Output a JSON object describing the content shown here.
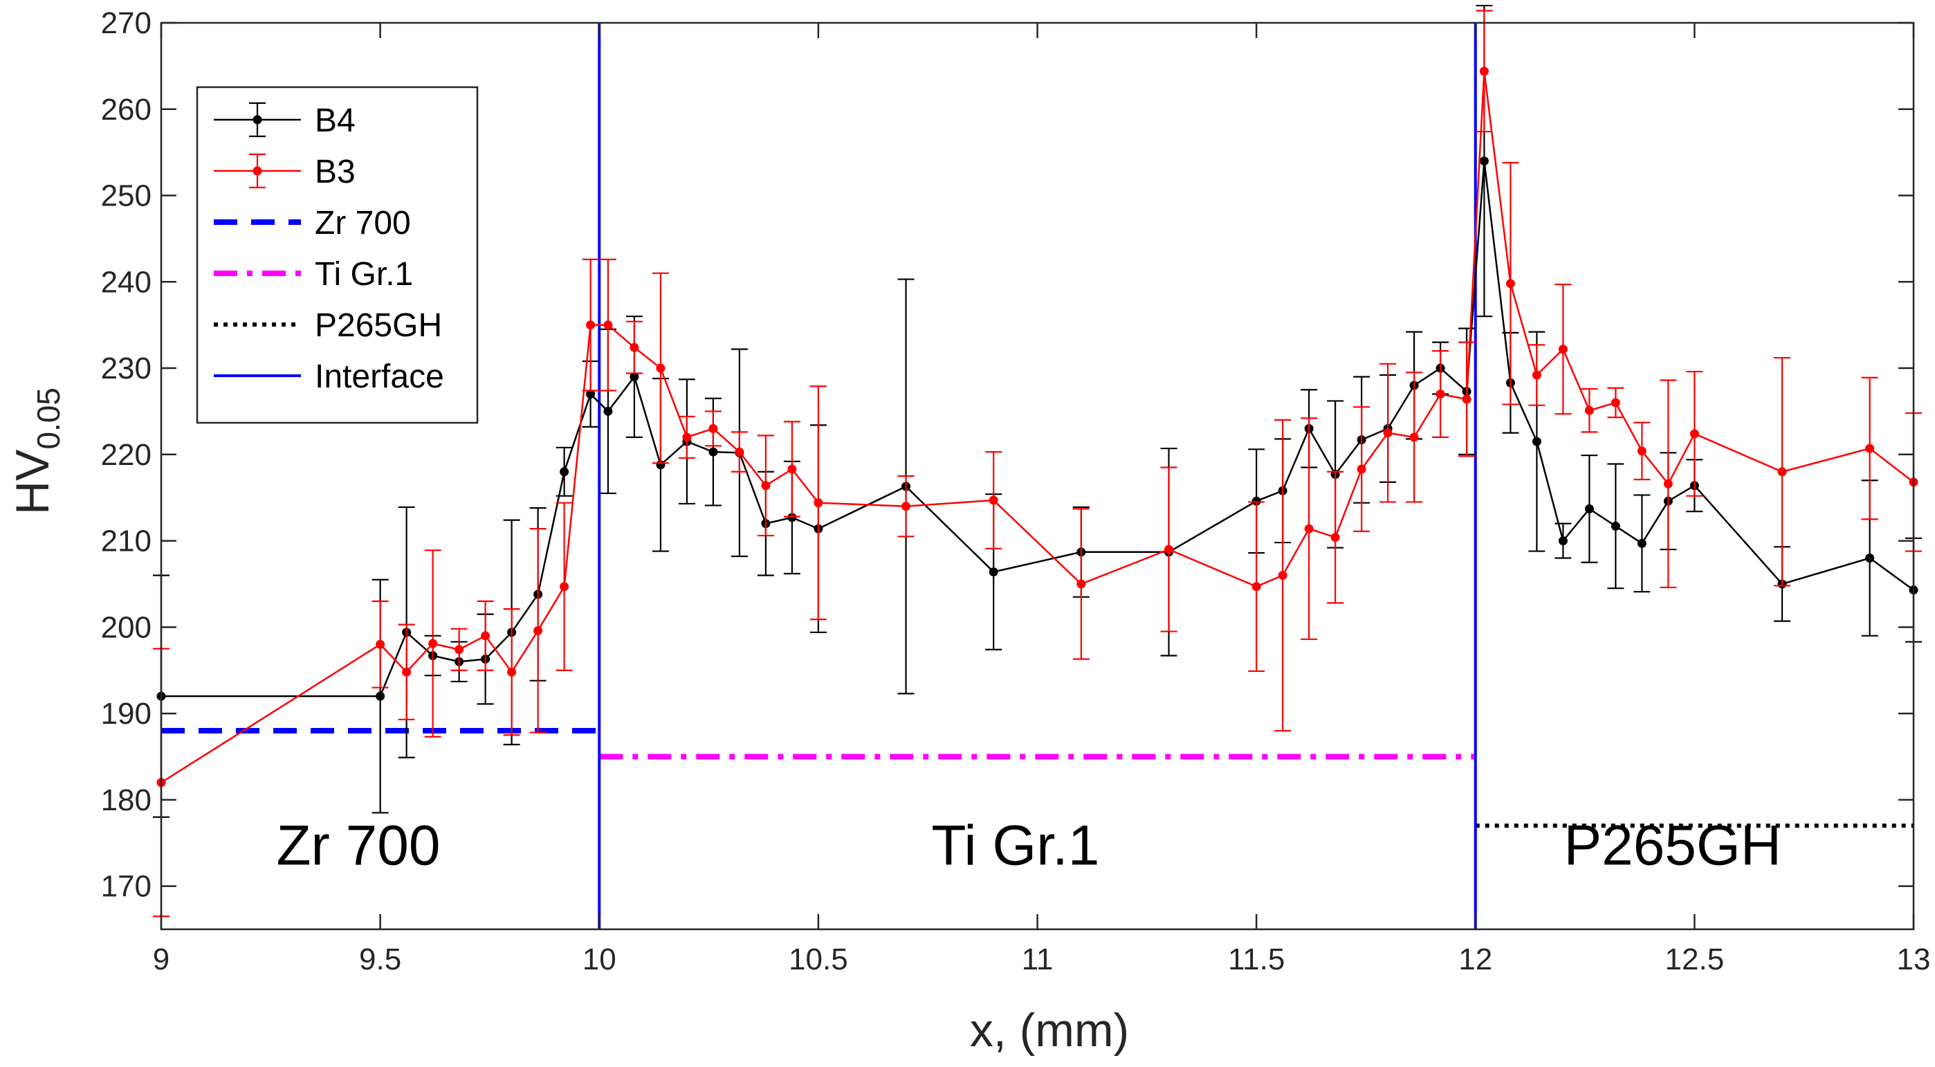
{
  "chart_data": {
    "type": "line",
    "title": "",
    "xlabel": "x, (mm)",
    "ylabel": "HV",
    "ylabel_subscript": "0.05",
    "xlim": [
      9,
      13
    ],
    "ylim": [
      165,
      270
    ],
    "x_ticks": [
      9,
      9.5,
      10,
      10.5,
      11,
      11.5,
      12,
      12.5,
      13
    ],
    "x_tick_labels": [
      "9",
      "9.5",
      "10",
      "10.5",
      "11",
      "11.5",
      "12",
      "12.5",
      "13"
    ],
    "y_ticks": [
      170,
      180,
      190,
      200,
      210,
      220,
      230,
      240,
      250,
      260,
      270
    ],
    "y_tick_labels": [
      "170",
      "180",
      "190",
      "200",
      "210",
      "220",
      "230",
      "240",
      "250",
      "260",
      "270"
    ],
    "grid": false,
    "legend_position": "top-left",
    "series": [
      {
        "name": "B4",
        "color": "#000000",
        "x": [
          9.0,
          9.5,
          9.56,
          9.62,
          9.68,
          9.74,
          9.8,
          9.86,
          9.92,
          9.98,
          10.02,
          10.08,
          10.14,
          10.2,
          10.26,
          10.32,
          10.38,
          10.44,
          10.5,
          10.7,
          10.9,
          11.1,
          11.3,
          11.5,
          11.56,
          11.62,
          11.68,
          11.74,
          11.8,
          11.86,
          11.92,
          11.98,
          12.02,
          12.08,
          12.14,
          12.2,
          12.26,
          12.32,
          12.38,
          12.44,
          12.5,
          12.7,
          12.9,
          13.0
        ],
        "y": [
          192,
          192,
          199.4,
          196.7,
          196,
          196.3,
          199.4,
          203.8,
          218,
          227,
          225,
          229,
          218.8,
          221.5,
          220.3,
          220.2,
          212,
          212.7,
          211.4,
          216.3,
          206.4,
          208.7,
          208.7,
          214.6,
          215.8,
          223,
          217.7,
          221.7,
          223,
          228,
          230,
          227.3,
          254,
          228.3,
          221.5,
          210,
          213.7,
          211.7,
          209.7,
          214.6,
          216.4,
          205,
          208,
          204.3
        ],
        "err": [
          14,
          13.5,
          14.5,
          2.3,
          2.3,
          5.2,
          13,
          10,
          2.8,
          3.8,
          9.5,
          7,
          10,
          7.2,
          6.2,
          12,
          6,
          6.5,
          12,
          24,
          9,
          5.2,
          12,
          6,
          6,
          4.5,
          8.5,
          7.3,
          6.2,
          6.2,
          3,
          7.3,
          18,
          5.8,
          12.7,
          2,
          6.2,
          7.2,
          5.6,
          5.6,
          3,
          4.3,
          9,
          6
        ]
      },
      {
        "name": "B3",
        "color": "#ff0000",
        "x": [
          9.0,
          9.5,
          9.56,
          9.62,
          9.68,
          9.74,
          9.8,
          9.86,
          9.92,
          9.98,
          10.02,
          10.08,
          10.14,
          10.2,
          10.26,
          10.32,
          10.38,
          10.44,
          10.5,
          10.7,
          10.9,
          11.1,
          11.3,
          11.5,
          11.56,
          11.62,
          11.68,
          11.74,
          11.8,
          11.86,
          11.92,
          11.98,
          12.02,
          12.08,
          12.14,
          12.2,
          12.26,
          12.32,
          12.38,
          12.44,
          12.5,
          12.7,
          12.9,
          13.0
        ],
        "y": [
          182,
          198,
          194.8,
          198.1,
          197.4,
          199,
          194.8,
          199.6,
          204.7,
          235,
          235,
          232.4,
          230,
          222,
          223,
          220.3,
          216.4,
          218.3,
          214.4,
          214,
          214.7,
          205,
          209,
          204.7,
          206,
          211.4,
          210.4,
          218.3,
          222.5,
          222,
          227,
          226.4,
          264.4,
          239.8,
          229.2,
          232.2,
          225.1,
          226,
          220.4,
          216.6,
          222.4,
          218,
          220.7,
          216.8
        ],
        "err": [
          15.5,
          5,
          5.5,
          10.8,
          2.4,
          4,
          7.3,
          11.8,
          9.7,
          7.6,
          7.6,
          3,
          11,
          2.4,
          2,
          2.3,
          5.8,
          5.5,
          13.5,
          3.5,
          5.6,
          8.7,
          9.5,
          9.8,
          18,
          12.8,
          7.6,
          7.2,
          8,
          7.5,
          5,
          6.6,
          7,
          14,
          3.5,
          7.5,
          2.5,
          1.7,
          3.3,
          12,
          7.2,
          13.2,
          8.2,
          8
        ]
      },
      {
        "name": "Zr 700",
        "color": "#0000ff",
        "style": "dashed",
        "x": [
          9,
          10
        ],
        "y": [
          188,
          188
        ]
      },
      {
        "name": "Ti Gr.1",
        "color": "#ff00ff",
        "style": "dash-dot",
        "x": [
          10,
          12
        ],
        "y": [
          185,
          185
        ]
      },
      {
        "name": "P265GH",
        "color": "#000000",
        "style": "dotted",
        "x": [
          12,
          13
        ],
        "y": [
          177,
          177
        ]
      }
    ],
    "interfaces": {
      "name": "Interface",
      "color": "#0000ff",
      "x": [
        10,
        12
      ]
    },
    "annotations": [
      {
        "text": "Zr 700",
        "x": 9.45,
        "y": 172.5
      },
      {
        "text": "Ti Gr.1",
        "x": 10.95,
        "y": 172.5
      },
      {
        "text": "P265GH",
        "x": 12.45,
        "y": 172.5
      }
    ]
  }
}
